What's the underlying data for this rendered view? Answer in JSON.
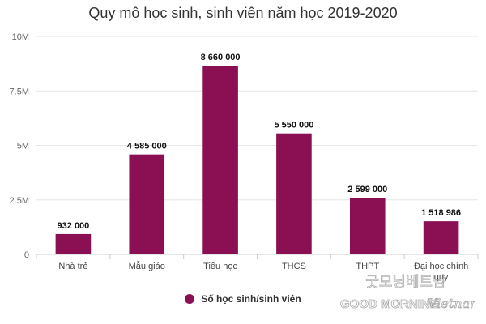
{
  "chart_data": {
    "type": "bar",
    "title": "Quy mô học sinh, sinh viên năm học 2019-2020",
    "categories": [
      "Nhà trẻ",
      "Mẫu giáo",
      "Tiểu học",
      "THCS",
      "THPT",
      "Đại học chính quy"
    ],
    "series": [
      {
        "name": "Số học sinh/sinh viên",
        "values": [
          932000,
          4585000,
          8660000,
          5550000,
          2599000,
          1518986
        ],
        "labels": [
          "932 000",
          "4 585 000",
          "8 660 000",
          "5 550 000",
          "2 599 000",
          "1 518 986"
        ],
        "color": "#8a1053"
      }
    ],
    "y_ticks": [
      {
        "value": 0,
        "label": "0"
      },
      {
        "value": 2500000,
        "label": "2.5M"
      },
      {
        "value": 5000000,
        "label": "5M"
      },
      {
        "value": 7500000,
        "label": "7.5M"
      },
      {
        "value": 10000000,
        "label": "10M"
      }
    ],
    "ylim": [
      0,
      10000000
    ],
    "grid": true,
    "legend_position": "bottom-center",
    "xlabel": "",
    "ylabel": ""
  },
  "watermark": {
    "text_top": "굿모닝베트남",
    "text_bottom": "GOOD MORNING",
    "text_script": "Vietnam"
  }
}
